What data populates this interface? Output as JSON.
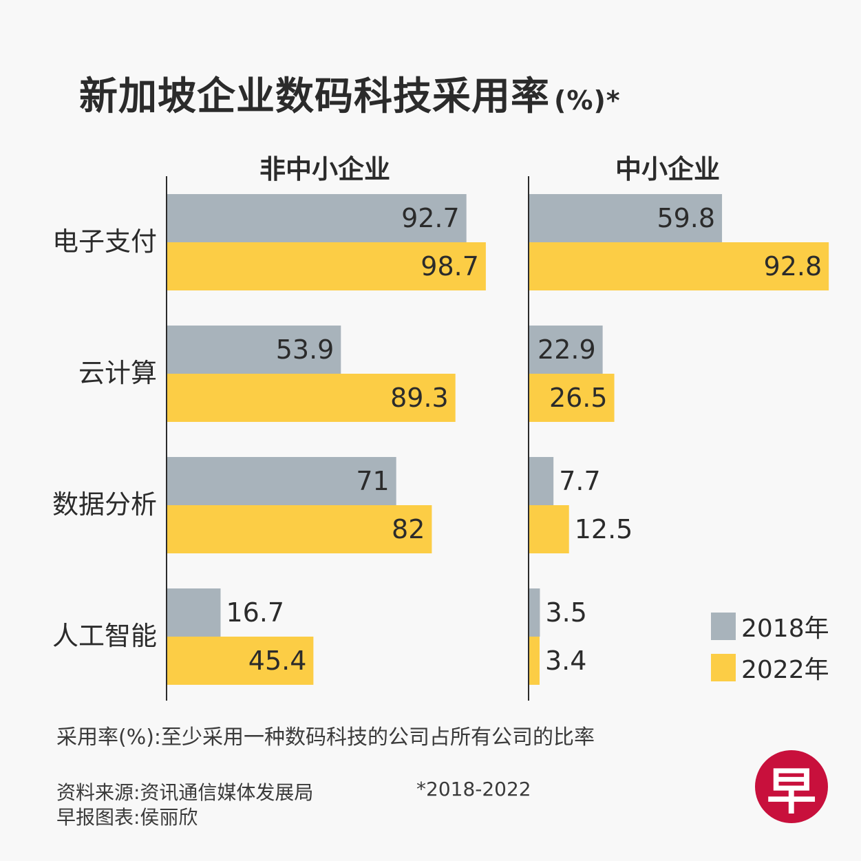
{
  "header": {
    "title": "新加坡企业数码科技采用率",
    "title_unit": "(%)*"
  },
  "chart_data": {
    "type": "bar",
    "orientation": "horizontal",
    "categories": [
      "电子支付",
      "云计算",
      "数据分析",
      "人工智能"
    ],
    "panels": [
      {
        "title": "非中小企业",
        "series": [
          {
            "name": "2018年",
            "values": [
              92.7,
              53.9,
              71,
              16.7
            ],
            "labels": [
              "92.7",
              "53.9",
              "71",
              "16.7"
            ]
          },
          {
            "name": "2022年",
            "values": [
              98.7,
              89.3,
              82,
              45.4
            ],
            "labels": [
              "98.7",
              "89.3",
              "82",
              "45.4"
            ]
          }
        ]
      },
      {
        "title": "中小企业",
        "series": [
          {
            "name": "2018年",
            "values": [
              59.8,
              22.9,
              7.7,
              3.5
            ],
            "labels": [
              "59.8",
              "22.9",
              "7.7",
              "3.5"
            ]
          },
          {
            "name": "2022年",
            "values": [
              92.8,
              26.5,
              12.5,
              3.4
            ],
            "labels": [
              "92.8",
              "26.5",
              "12.5",
              "3.4"
            ]
          }
        ]
      }
    ],
    "colors": {
      "2018年": "#a8b3bb",
      "2022年": "#fccd45"
    },
    "xlim": [
      0,
      100
    ],
    "grid": false,
    "legend_placement": "bottom-right"
  },
  "legend": {
    "items": [
      {
        "label": "2018年",
        "color": "#a8b3bb"
      },
      {
        "label": "2022年",
        "color": "#fccd45"
      }
    ]
  },
  "footer": {
    "note": "采用率(%):至少采用一种数码科技的公司占所有公司的比率",
    "source": "资料来源:资讯通信媒体发展局",
    "credit": "早报图表:侯丽欣",
    "period": "*2018-2022",
    "logo_text": "早"
  }
}
